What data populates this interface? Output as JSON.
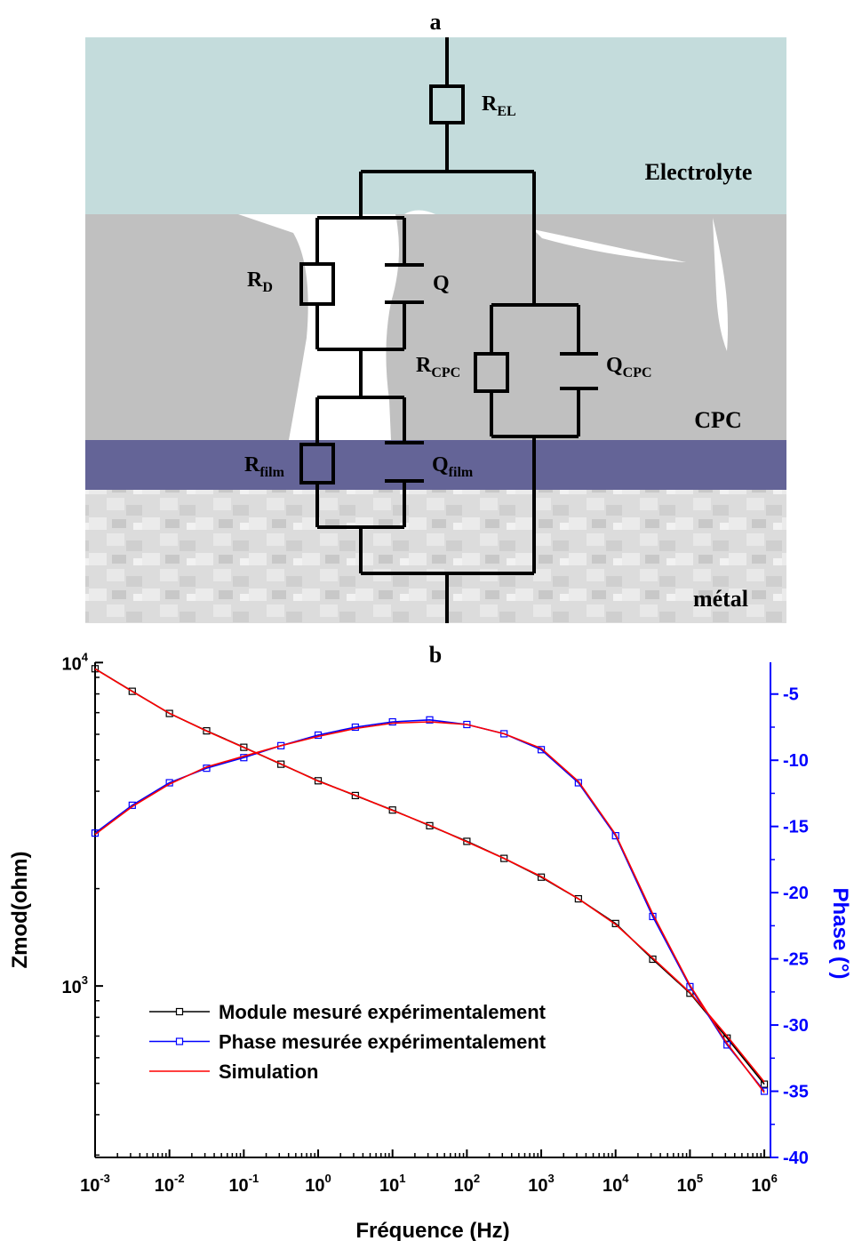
{
  "panel_a": {
    "label": "a",
    "layers": [
      "Electrolyte",
      "CPC",
      "métal"
    ],
    "components": [
      {
        "symbol": "R",
        "sub": "EL"
      },
      {
        "symbol": "R",
        "sub": "D"
      },
      {
        "symbol": "Q"
      },
      {
        "symbol": "R",
        "sub": "CPC"
      },
      {
        "symbol": "Q",
        "sub": "CPC"
      },
      {
        "symbol": "R",
        "sub": "film"
      },
      {
        "symbol": "Q",
        "sub": "film"
      }
    ]
  },
  "chart_data": {
    "type": "line",
    "panel_label": "b",
    "x_label": "Fréquence (Hz)",
    "y_label": "Zmod(ohm)",
    "y2_label": "Phase (°)",
    "log_x": true,
    "log_y": true,
    "x": [
      0.001,
      0.00316,
      0.01,
      0.0316,
      0.1,
      0.316,
      1,
      3.16,
      10,
      31.6,
      100,
      316,
      1000,
      3160,
      10000,
      31600,
      100000,
      316000,
      1000000
    ],
    "xlim": [
      0.001,
      1210000
    ],
    "xticks": [
      {
        "value": 0.001,
        "label": "10",
        "exponent": "-3"
      },
      {
        "value": 0.01,
        "label": "10",
        "exponent": "-2"
      },
      {
        "value": 0.1,
        "label": "10",
        "exponent": "-1"
      },
      {
        "value": 1,
        "label": "10",
        "exponent": "0"
      },
      {
        "value": 10,
        "label": "10",
        "exponent": "1"
      },
      {
        "value": 100,
        "label": "10",
        "exponent": "2"
      },
      {
        "value": 1000,
        "label": "10",
        "exponent": "3"
      },
      {
        "value": 10000,
        "label": "10",
        "exponent": "4"
      },
      {
        "value": 100000,
        "label": "10",
        "exponent": "5"
      },
      {
        "value": 1000000,
        "label": "10",
        "exponent": "6"
      }
    ],
    "ylim": [
      295,
      10020
    ],
    "yticks": [
      {
        "value": 1000,
        "label": "10",
        "exponent": "3"
      },
      {
        "value": 10000,
        "label": "10",
        "exponent": "4"
      }
    ],
    "y2lim": [
      -40,
      -2.6
    ],
    "y2ticks": [
      -5,
      -10,
      -15,
      -20,
      -25,
      -30,
      -35,
      -40
    ],
    "y2_color": "#0000ff",
    "series": [
      {
        "name": "Module mesuré expérimentalement",
        "color": "#000000",
        "marker": "square",
        "values": [
          9570,
          8150,
          6960,
          6150,
          5470,
          4850,
          4310,
          3880,
          3500,
          3130,
          2800,
          2480,
          2170,
          1860,
          1560,
          1210,
          950,
          690,
          497
        ]
      },
      {
        "name": "Phase mesurée expérimentalement",
        "color": "#0000ff",
        "marker": "square",
        "axis": "y2",
        "values": [
          -15.5,
          -13.4,
          -11.7,
          -10.6,
          -9.8,
          -8.9,
          -8.1,
          -7.5,
          -7.1,
          -6.95,
          -7.3,
          -8.0,
          -9.2,
          -11.7,
          -15.7,
          -21.8,
          -27.1,
          -31.5,
          -35.0
        ]
      },
      {
        "name": "Simulation",
        "color": "#ff0000",
        "values": [
          9560,
          8140,
          6970,
          6140,
          5460,
          4860,
          4300,
          3890,
          3490,
          3140,
          2790,
          2480,
          2180,
          1860,
          1550,
          1220,
          955,
          700,
          505
        ]
      },
      {
        "color": "#ff0000",
        "axis": "y2",
        "values": [
          -15.6,
          -13.5,
          -11.8,
          -10.5,
          -9.7,
          -8.9,
          -8.2,
          -7.6,
          -7.2,
          -7.1,
          -7.3,
          -8.0,
          -9.1,
          -11.6,
          -15.6,
          -21.6,
          -27.0,
          -31.4,
          -35.1
        ]
      }
    ]
  }
}
